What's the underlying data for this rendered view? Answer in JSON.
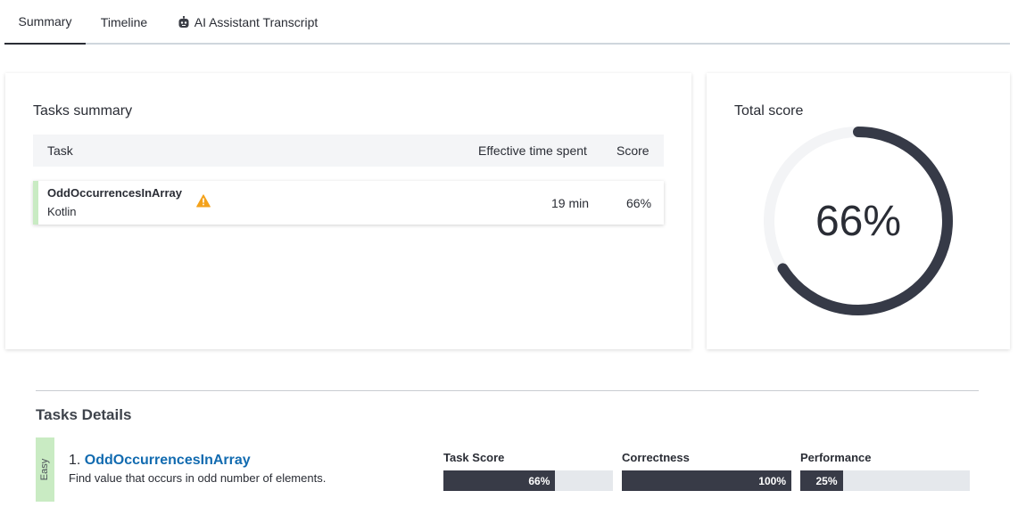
{
  "tabs": [
    {
      "label": "Summary",
      "active": true
    },
    {
      "label": "Timeline",
      "active": false
    },
    {
      "label": "AI Assistant Transcript",
      "active": false,
      "icon": "robot-icon"
    }
  ],
  "tasks_summary": {
    "title": "Tasks summary",
    "columns": [
      "Task",
      "Effective time spent",
      "Score"
    ],
    "rows": [
      {
        "name": "OddOccurrencesInArray",
        "language": "Kotlin",
        "warning_icon": "warning-icon",
        "time": "19 min",
        "score": "66%"
      }
    ]
  },
  "total_score": {
    "title": "Total score",
    "value_text": "66%",
    "value": 66,
    "colors": {
      "track": "#f3f4f6",
      "fill": "#363a47"
    }
  },
  "tasks_details": {
    "title": "Tasks Details",
    "items": [
      {
        "difficulty": "Easy",
        "number": "1.",
        "name": "OddOccurrencesInArray",
        "description": "Find value that occurs in odd number of elements.",
        "metrics": [
          {
            "label": "Task Score",
            "value_text": "66%",
            "value": 66
          },
          {
            "label": "Correctness",
            "value_text": "100%",
            "value": 100
          },
          {
            "label": "Performance",
            "value_text": "25%",
            "value": 25
          }
        ]
      }
    ]
  },
  "colors": {
    "accent_link": "#126bb0",
    "easy_badge": "#c9ebc3",
    "bar_fill": "#383b47",
    "bar_track": "#e5e8ec",
    "warning": "#f4a21b"
  }
}
